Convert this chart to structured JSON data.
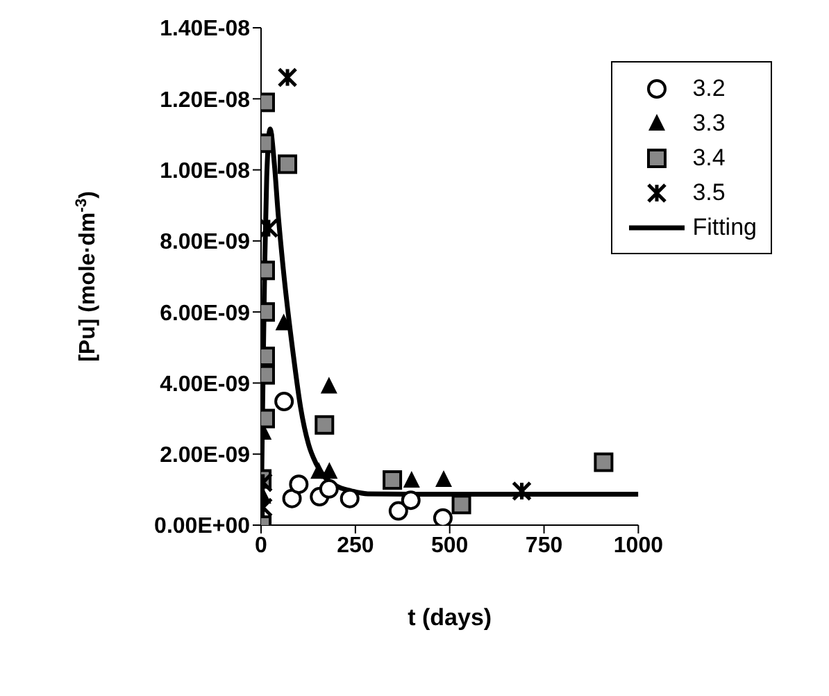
{
  "chart_data": {
    "type": "scatter",
    "xlabel": "t (days)",
    "ylabel": "[Pu] (mole·dm$^{-3}$)",
    "xlim": [
      0,
      1000
    ],
    "xticks": [
      0,
      250,
      500,
      750,
      1000
    ],
    "ylim": [
      0,
      1.4e-08
    ],
    "yticks": [
      {
        "value": 0,
        "label": "0.00E+00"
      },
      {
        "value": 2e-09,
        "label": "2.00E-09"
      },
      {
        "value": 4e-09,
        "label": "4.00E-09"
      },
      {
        "value": 6e-09,
        "label": "6.00E-09"
      },
      {
        "value": 8e-09,
        "label": "8.00E-09"
      },
      {
        "value": 1e-08,
        "label": "1.00E-08"
      },
      {
        "value": 1.2e-08,
        "label": "1.20E-08"
      },
      {
        "value": 1.4e-08,
        "label": "1.40E-08"
      }
    ],
    "legend": "top right",
    "grid": false,
    "series": [
      {
        "name": "3.2",
        "marker": "circle",
        "color": "#000000",
        "x": [
          61,
          82,
          100,
          155,
          180,
          235,
          364,
          397,
          482
        ],
        "values": [
          3.48e-09,
          7.5e-10,
          1.15e-09,
          8e-10,
          1.02e-09,
          7.5e-10,
          4e-10,
          7e-10,
          2e-10
        ]
      },
      {
        "name": "3.3",
        "marker": "triangle",
        "color": "#000000",
        "x": [
          5,
          6,
          60,
          153,
          180,
          181,
          399,
          484
        ],
        "values": [
          8e-10,
          2.6e-09,
          5.68e-09,
          1.5e-09,
          3.9e-09,
          1.5e-09,
          1.25e-09,
          1.27e-09
        ]
      },
      {
        "name": "3.4",
        "marker": "square",
        "color": "#888888",
        "x": [
          2,
          2,
          11,
          11,
          11,
          11,
          11,
          8,
          11,
          70,
          168,
          348,
          531,
          908
        ],
        "values": [
          0,
          1.3e-09,
          3e-09,
          4.23e-09,
          4.75e-09,
          6e-09,
          7.17e-09,
          1.075e-08,
          1.19e-08,
          1.016e-08,
          2.82e-09,
          1.27e-09,
          5.8e-10,
          1.77e-09
        ]
      },
      {
        "name": "3.5",
        "marker": "cross",
        "color": "#000000",
        "x": [
          5,
          5,
          20,
          70,
          691
        ],
        "values": [
          5e-10,
          1.2e-09,
          8.36e-09,
          1.26e-08,
          9.6e-10
        ]
      },
      {
        "name": "Fitting",
        "type": "line",
        "marker": "none",
        "line_style": "solid",
        "color": "#000000",
        "x": [
          0,
          5,
          10,
          15,
          24,
          35,
          45,
          59,
          86,
          105,
          126,
          145,
          165,
          200,
          237,
          283,
          400,
          1000
        ],
        "values": [
          0,
          4e-09,
          7.5e-09,
          9.8e-09,
          1.115e-08,
          1.02e-08,
          8.8e-09,
          7.2e-09,
          4.75e-09,
          3.3e-09,
          2.27e-09,
          1.75e-09,
          1.4e-09,
          1.1e-09,
          9.7e-10,
          8.8e-10,
          8.7e-10,
          8.7e-10
        ]
      }
    ]
  }
}
